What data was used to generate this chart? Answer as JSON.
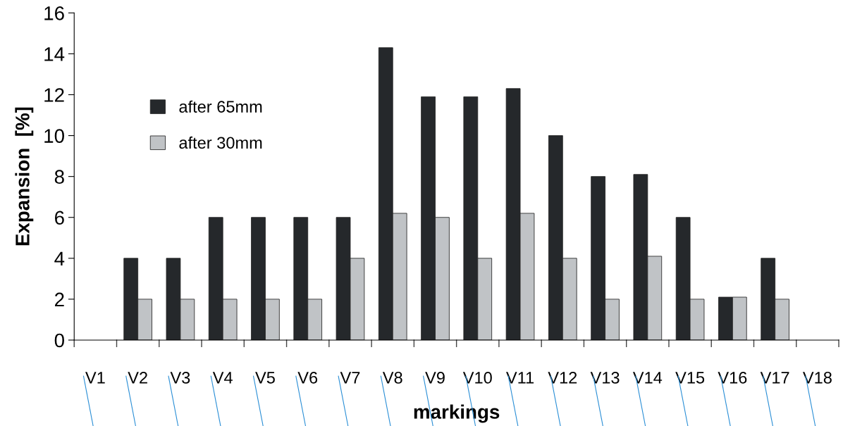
{
  "chart_data": {
    "type": "bar",
    "xlabel": "markings",
    "ylabel": "Expansion  [%]",
    "categories": [
      "V1",
      "V2",
      "V3",
      "V4",
      "V5",
      "V6",
      "V7",
      "V8",
      "V9",
      "V10",
      "V11",
      "V12",
      "V13",
      "V14",
      "V15",
      "V16",
      "V17",
      "V18"
    ],
    "series": [
      {
        "name": "after 65mm",
        "color": "#25282b",
        "values": [
          null,
          4,
          4,
          6,
          6,
          6,
          6,
          14.3,
          11.9,
          11.9,
          12.3,
          10,
          8,
          8.1,
          6,
          2.1,
          4,
          null
        ]
      },
      {
        "name": "after 30mm",
        "color": "#c0c3c6",
        "values": [
          null,
          2,
          2,
          2,
          2,
          2,
          4,
          6.2,
          6,
          4,
          6.2,
          4,
          2,
          4.1,
          2,
          2.1,
          2,
          null
        ]
      }
    ],
    "ylim": [
      0,
      16
    ],
    "yticks": [
      0,
      2,
      4,
      6,
      8,
      10,
      12,
      14,
      16
    ],
    "grid": false,
    "legend": "top left"
  }
}
